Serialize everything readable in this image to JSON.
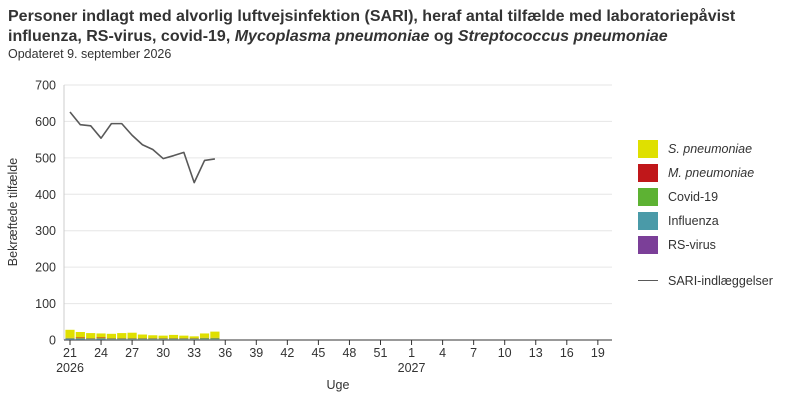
{
  "title": {
    "line1": "Personer indlagt med alvorlig luftvejsinfektion (SARI), heraf antal tilfælde med laboratoriepåvist",
    "line2_a": "influenza, RS-virus, covid-19, ",
    "line2_b": "Mycoplasma pneumoniae",
    "line2_c": " og ",
    "line2_d": "Streptococcus pneumoniae"
  },
  "subtitle": "Opdateret 9. september 2026",
  "chart_data": {
    "type": "bar",
    "stacked": true,
    "xlabel": "Uge",
    "ylabel": "Bekræftede tilfælde",
    "ylim": [
      0,
      700
    ],
    "yticks": [
      0,
      100,
      200,
      300,
      400,
      500,
      600,
      700
    ],
    "grid": true,
    "legend_position": "right",
    "x_tick_labels": [
      "21",
      "24",
      "27",
      "30",
      "33",
      "36",
      "39",
      "42",
      "45",
      "48",
      "51",
      "1",
      "4",
      "7",
      "10",
      "13",
      "16",
      "19"
    ],
    "x_year_labels": [
      "2026",
      "2027"
    ],
    "weeks": [
      "21",
      "22",
      "23",
      "24",
      "25",
      "26",
      "27",
      "28",
      "29",
      "30",
      "31",
      "32",
      "33",
      "34",
      "35"
    ],
    "series": [
      {
        "name": "RS-virus",
        "color": "#7b3f98",
        "values": [
          1,
          1,
          1,
          1,
          1,
          1,
          1,
          1,
          1,
          1,
          1,
          1,
          1,
          1,
          1
        ]
      },
      {
        "name": "Influenza",
        "color": "#4a9aa8",
        "values": [
          2,
          2,
          1,
          2,
          1,
          1,
          1,
          1,
          1,
          1,
          1,
          1,
          1,
          1,
          1
        ]
      },
      {
        "name": "Covid-19",
        "color": "#5db233",
        "values": [
          2,
          2,
          2,
          2,
          2,
          2,
          2,
          2,
          2,
          2,
          2,
          2,
          2,
          3,
          3
        ]
      },
      {
        "name": "M. pneumoniae",
        "color": "#c0171a",
        "values": [
          1,
          2,
          1,
          2,
          1,
          1,
          1,
          1,
          1,
          1,
          1,
          1,
          1,
          1,
          1
        ]
      },
      {
        "name": "S. pneumoniae",
        "color": "#dfe000",
        "values": [
          22,
          15,
          14,
          11,
          12,
          14,
          15,
          10,
          8,
          7,
          9,
          7,
          5,
          12,
          17
        ]
      }
    ],
    "line": {
      "name": "SARI-indlæggelser",
      "color": "#595959",
      "values": [
        626,
        591,
        588,
        554,
        594,
        594,
        562,
        536,
        523,
        498,
        506,
        515,
        432,
        493,
        497
      ]
    }
  },
  "legend": [
    {
      "label": "S. pneumoniae",
      "color": "#dfe000",
      "italic": true,
      "kind": "box"
    },
    {
      "label": "M. pneumoniae",
      "color": "#c0171a",
      "italic": true,
      "kind": "box"
    },
    {
      "label": "Covid-19",
      "color": "#5db233",
      "italic": false,
      "kind": "box"
    },
    {
      "label": "Influenza",
      "color": "#4a9aa8",
      "italic": false,
      "kind": "box"
    },
    {
      "label": "RS-virus",
      "color": "#7b3f98",
      "italic": false,
      "kind": "box"
    },
    {
      "label": "SARI-indlæggelser",
      "color": "#595959",
      "italic": false,
      "kind": "line"
    }
  ]
}
